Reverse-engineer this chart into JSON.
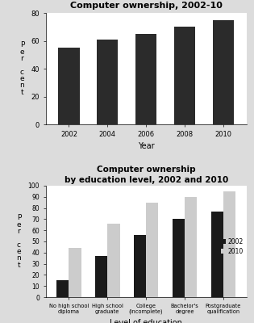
{
  "chart1": {
    "title": "Computer ownership, 2002-10",
    "years": [
      2002,
      2004,
      2006,
      2008,
      2010
    ],
    "values": [
      55,
      61,
      65,
      70,
      75
    ],
    "bar_color": "#2b2b2b",
    "xlabel": "Year",
    "ylim": [
      0,
      80
    ],
    "yticks": [
      0,
      20,
      40,
      60,
      80
    ],
    "ylabel_text": "P\ne\nr\n \nc\ne\nn\nt"
  },
  "chart2": {
    "title": "Computer ownership\nby education level, 2002 and 2010",
    "categories": [
      "No high school\ndiploma",
      "High school\ngraduate",
      "College\n(incomplete)",
      "Bachelor's\ndegree",
      "Postgraduate\nqualification"
    ],
    "values_2002": [
      15,
      37,
      56,
      70,
      77
    ],
    "values_2010": [
      44,
      66,
      85,
      90,
      95
    ],
    "color_2002": "#1a1a1a",
    "color_2010": "#cccccc",
    "xlabel": "Level of education",
    "ylim": [
      0,
      100
    ],
    "yticks": [
      0,
      10,
      20,
      30,
      40,
      50,
      60,
      70,
      80,
      90,
      100
    ],
    "legend_2002": "2002",
    "legend_2010": "2010",
    "ylabel_text": "P\ne\nr\n \nc\ne\nn\nt"
  },
  "bg_color": "#dcdcdc"
}
